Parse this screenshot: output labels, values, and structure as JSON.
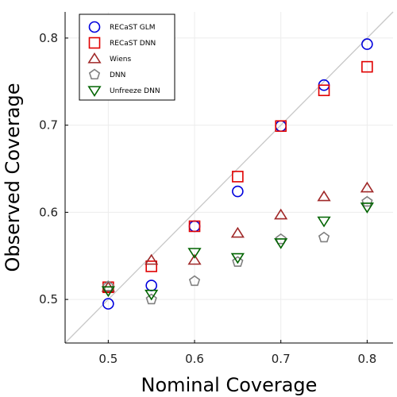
{
  "chart_data": {
    "type": "scatter",
    "xlabel": "Nominal Coverage",
    "ylabel": "Observed Coverage",
    "xlim": [
      0.45,
      0.83
    ],
    "ylim": [
      0.45,
      0.83
    ],
    "x_ticks": [
      0.5,
      0.6,
      0.7,
      0.8
    ],
    "y_ticks": [
      0.5,
      0.6,
      0.7,
      0.8
    ],
    "x_tick_labels": [
      "0.5",
      "0.6",
      "0.7",
      "0.8"
    ],
    "y_tick_labels": [
      "0.5",
      "0.6",
      "0.7",
      "0.8"
    ],
    "grid": true,
    "diagonal_reference_line": true,
    "legend_position": "top-left",
    "series": [
      {
        "name": "RECaST GLM",
        "marker": "circle",
        "color": "#0000dd",
        "x": [
          0.5,
          0.55,
          0.6,
          0.65,
          0.7,
          0.75,
          0.8
        ],
        "y": [
          0.495,
          0.516,
          0.584,
          0.624,
          0.699,
          0.746,
          0.793
        ]
      },
      {
        "name": "RECaST  DNN",
        "marker": "square",
        "color": "#e00000",
        "x": [
          0.5,
          0.55,
          0.6,
          0.65,
          0.7,
          0.75,
          0.8
        ],
        "y": [
          0.514,
          0.538,
          0.584,
          0.641,
          0.699,
          0.74,
          0.767
        ]
      },
      {
        "name": "Wiens",
        "marker": "triangle-up",
        "color": "#a02828",
        "x": [
          0.5,
          0.55,
          0.6,
          0.65,
          0.7,
          0.75,
          0.8
        ],
        "y": [
          0.514,
          0.545,
          0.545,
          0.576,
          0.597,
          0.618,
          0.628
        ]
      },
      {
        "name": "DNN",
        "marker": "pentagon",
        "color": "#808080",
        "x": [
          0.5,
          0.55,
          0.6,
          0.65,
          0.7,
          0.75,
          0.8
        ],
        "y": [
          0.515,
          0.5,
          0.521,
          0.543,
          0.569,
          0.571,
          0.612
        ]
      },
      {
        "name": "Unfreeze DNN",
        "marker": "triangle-down",
        "color": "#006400",
        "x": [
          0.5,
          0.55,
          0.6,
          0.65,
          0.7,
          0.75,
          0.8
        ],
        "y": [
          0.51,
          0.506,
          0.554,
          0.548,
          0.565,
          0.59,
          0.606
        ]
      }
    ]
  }
}
